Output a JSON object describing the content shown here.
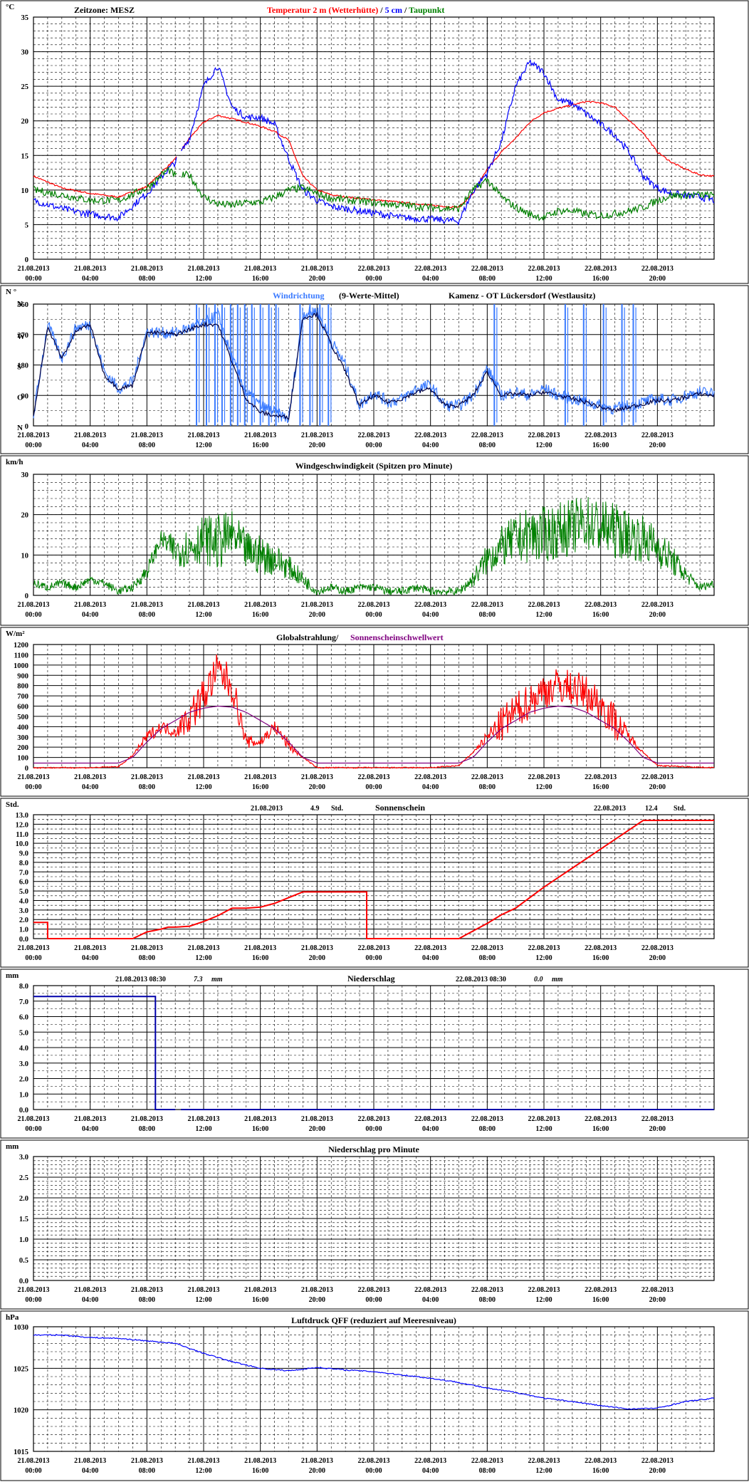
{
  "x_axis": {
    "dates": [
      "21.08.2013",
      "21.08.2013",
      "21.08.2013",
      "21.08.2013",
      "21.08.2013",
      "21.08.2013",
      "22.08.2013",
      "22.08.2013",
      "22.08.2013",
      "22.08.2013",
      "22.08.2013",
      "22.08.2013"
    ],
    "times": [
      "00:00",
      "04:00",
      "08:00",
      "12:00",
      "16:00",
      "20:00",
      "00:00",
      "04:00",
      "08:00",
      "12:00",
      "16:00",
      "20:00"
    ],
    "span_hours": 48
  },
  "chart_data": [
    {
      "id": "temperature",
      "type": "line",
      "unit": "°C",
      "header": {
        "zone": "Zeitzone: MESZ",
        "title_a": "Temperatur 2 m (Wetterhütte)",
        "sep1": " / ",
        "title_b": "5 cm",
        "sep2": " / ",
        "title_c": "Taupunkt"
      },
      "ylim": [
        0,
        35
      ],
      "ymajor": 5,
      "yminor": 1,
      "yticks": [
        0,
        5,
        10,
        15,
        20,
        25,
        30,
        35
      ],
      "x_hours": [
        0,
        2,
        4,
        6,
        8,
        9.5,
        10,
        11,
        12,
        13,
        14,
        15,
        16,
        17,
        18,
        19,
        20,
        21,
        22,
        24,
        26,
        28,
        30,
        31,
        32,
        33,
        34,
        35,
        36,
        37,
        38,
        39,
        40,
        41,
        42,
        43,
        44,
        45,
        46,
        47,
        48
      ],
      "series": [
        {
          "name": "Temperatur 2 m (Wetterhütte)",
          "color": "#ff0000",
          "values": [
            12,
            10.3,
            9.5,
            9,
            10.5,
            13.5,
            14.5,
            17.5,
            19.8,
            20.8,
            20.3,
            19.8,
            19.2,
            18.5,
            17.2,
            12,
            10,
            9.3,
            9,
            8.6,
            8.2,
            7.8,
            7.5,
            9.5,
            13,
            15.5,
            17.5,
            19.8,
            21.2,
            21.8,
            22.3,
            22.8,
            22.6,
            22,
            20,
            18.3,
            15.5,
            14,
            13,
            12.2,
            12
          ]
        },
        {
          "name": "5 cm",
          "color": "#0000ff",
          "values": [
            8.5,
            7.3,
            6.5,
            6,
            9.5,
            13,
            14,
            17.5,
            25,
            28,
            22,
            20.5,
            20.5,
            19.5,
            14.5,
            10,
            8.5,
            7.6,
            7.3,
            6.7,
            6,
            5.8,
            5.5,
            9.8,
            12.5,
            17,
            25,
            28.5,
            27,
            23,
            22.5,
            21,
            19.5,
            18,
            15.5,
            12,
            10.3,
            9.5,
            9.2,
            9,
            8.5
          ]
        },
        {
          "name": "Taupunkt",
          "color": "#008000",
          "values": [
            10,
            9.3,
            8.5,
            8.5,
            10.3,
            13,
            12,
            12.2,
            9,
            8,
            7.8,
            8.2,
            8.2,
            9,
            10,
            10.3,
            9.5,
            8.8,
            8.6,
            8.2,
            7.8,
            7.5,
            7.3,
            10,
            11.5,
            9,
            7.5,
            6.5,
            6,
            7,
            7,
            6.5,
            6.3,
            6.6,
            7,
            7.5,
            8.5,
            9.2,
            9.3,
            9.3,
            9.2
          ]
        }
      ],
      "gaps": [
        [
          10.1,
          10.4
        ]
      ]
    },
    {
      "id": "wind_direction",
      "type": "scatter",
      "unit": "N °",
      "header": {
        "title_a": "Windrichtung",
        "title_b": "(9-Werte-Mittel)",
        "station": "Kamenz - OT Lückersdorf (Westlausitz)"
      },
      "ylim": [
        0,
        360
      ],
      "yticks": [
        0,
        90,
        180,
        270,
        360
      ],
      "compass_labels": [
        "N",
        "O",
        "S",
        "W",
        "N"
      ],
      "compass_at": [
        0,
        90,
        180,
        270,
        360
      ],
      "x_hours": [
        0,
        1,
        2,
        3,
        4,
        5,
        6,
        7,
        8,
        9,
        10,
        11,
        12,
        13,
        14,
        15,
        16,
        17,
        18,
        19,
        20,
        21,
        22,
        23,
        24,
        25,
        26,
        27,
        28,
        29,
        30,
        31,
        32,
        33,
        34,
        35,
        36,
        37,
        38,
        39,
        40,
        41,
        42,
        43,
        44,
        45,
        46,
        47,
        48
      ],
      "series": [
        {
          "name": "Windrichtung",
          "color": "#3b7bff",
          "values": [
            30,
            300,
            200,
            290,
            300,
            160,
            110,
            130,
            280,
            275,
            275,
            290,
            300,
            330,
            200,
            100,
            60,
            40,
            20,
            330,
            340,
            250,
            180,
            60,
            100,
            70,
            80,
            110,
            120,
            60,
            60,
            90,
            170,
            90,
            100,
            90,
            110,
            90,
            80,
            70,
            60,
            50,
            60,
            70,
            80,
            75,
            90,
            100,
            95
          ]
        },
        {
          "name": "9-Werte-Mittel",
          "color": "#000040",
          "values": [
            30,
            290,
            200,
            280,
            300,
            150,
            110,
            120,
            275,
            275,
            270,
            285,
            300,
            300,
            190,
            80,
            40,
            30,
            25,
            320,
            330,
            240,
            160,
            60,
            90,
            70,
            80,
            100,
            110,
            60,
            60,
            90,
            160,
            90,
            95,
            90,
            100,
            90,
            80,
            70,
            55,
            45,
            55,
            65,
            75,
            75,
            85,
            95,
            90
          ]
        }
      ],
      "spikes_hours": [
        11.5,
        12.2,
        12.8,
        13.3,
        13.9,
        14.4,
        14.9,
        15.4,
        16.0,
        16.6,
        17.1,
        18.8,
        19.5,
        20.2,
        20.8,
        32.5,
        37.5,
        38.8,
        40.2,
        41.5,
        42.3
      ]
    },
    {
      "id": "wind_speed",
      "type": "line",
      "unit": "km/h",
      "header": {
        "title": "Windgeschwindigkeit (Spitzen pro Minute)"
      },
      "ylim": [
        0,
        30
      ],
      "yticks": [
        0,
        10,
        20,
        30
      ],
      "x_hours": [
        0,
        1,
        2,
        3,
        4,
        5,
        6,
        7,
        8,
        9,
        10,
        11,
        12,
        13,
        14,
        15,
        16,
        17,
        18,
        19,
        20,
        21,
        22,
        23,
        24,
        25,
        26,
        27,
        28,
        29,
        30,
        31,
        32,
        33,
        34,
        35,
        36,
        37,
        38,
        39,
        40,
        41,
        42,
        43,
        44,
        45,
        46,
        47,
        48
      ],
      "series": [
        {
          "name": "Windgeschwindigkeit",
          "color": "#008000",
          "values": [
            3,
            2,
            3,
            2,
            4,
            3,
            1,
            2,
            6,
            14,
            11,
            12,
            14,
            13,
            15,
            11,
            10,
            9,
            7,
            4,
            1,
            2,
            1,
            2,
            2,
            1,
            1,
            2,
            1,
            1,
            1,
            4,
            9,
            12,
            14,
            15,
            15,
            16,
            17,
            18,
            17,
            16,
            15,
            14,
            12,
            9,
            5,
            2,
            3
          ]
        }
      ],
      "amplitude": [
        1,
        1,
        1,
        1,
        1,
        1,
        1,
        1,
        2,
        2,
        4,
        5,
        6,
        7,
        6,
        5,
        5,
        4,
        3,
        2,
        1,
        1,
        1,
        1,
        1,
        1,
        1,
        1,
        1,
        1,
        1,
        2,
        4,
        5,
        6,
        7,
        7,
        7,
        7,
        7,
        7,
        7,
        6,
        6,
        5,
        4,
        2,
        1,
        1
      ]
    },
    {
      "id": "radiation",
      "type": "line",
      "unit": "W/m²",
      "header": {
        "title_a": "Globalstrahlung/",
        "title_b": "Sonnenscheinschwellwert"
      },
      "ylim": [
        0,
        1200
      ],
      "yticks": [
        0,
        100,
        200,
        300,
        400,
        500,
        600,
        700,
        800,
        900,
        1000,
        1100,
        1200
      ],
      "x_hours": [
        0,
        4,
        6,
        7,
        8,
        9,
        10,
        11,
        12,
        13,
        14,
        15,
        16,
        17,
        18,
        19,
        20,
        24,
        28,
        30,
        31,
        32,
        33,
        34,
        35,
        36,
        37,
        38,
        39,
        40,
        41,
        42,
        43,
        44,
        48
      ],
      "series": [
        {
          "name": "Globalstrahlung",
          "color": "#ff0000",
          "values": [
            0,
            0,
            10,
            120,
            300,
            400,
            350,
            500,
            700,
            950,
            800,
            250,
            250,
            400,
            220,
            100,
            0,
            0,
            0,
            20,
            150,
            300,
            420,
            550,
            650,
            750,
            800,
            780,
            720,
            620,
            450,
            300,
            150,
            20,
            0
          ]
        },
        {
          "name": "Sonnenscheinschwellwert",
          "color": "#800080",
          "values": [
            45,
            45,
            45,
            100,
            250,
            380,
            460,
            540,
            580,
            600,
            590,
            540,
            460,
            380,
            250,
            100,
            45,
            45,
            45,
            45,
            100,
            250,
            380,
            460,
            540,
            580,
            600,
            590,
            540,
            460,
            380,
            250,
            100,
            45,
            45
          ]
        }
      ]
    },
    {
      "id": "sunshine",
      "type": "line",
      "unit": "Std.",
      "header": {
        "day1_date": "21.08.2013",
        "day1_value": "4.9",
        "day1_unit": "Std.",
        "title": "Sonnenschein",
        "day2_date": "22.08.2013",
        "day2_value": "12.4",
        "day2_unit": "Std."
      },
      "ylim": [
        0,
        13
      ],
      "yticks": [
        0,
        1,
        2,
        3,
        4,
        5,
        6,
        7,
        8,
        9,
        10,
        11,
        12,
        13
      ],
      "x_hours": [
        0,
        1,
        1,
        7,
        8,
        9,
        9.5,
        10,
        11,
        12,
        13,
        14,
        15,
        16,
        17,
        18,
        19,
        20,
        23.5,
        23.5,
        30,
        31,
        32,
        33,
        34,
        35,
        36,
        37,
        38,
        39,
        40,
        41,
        42,
        43,
        44,
        48
      ],
      "series": [
        {
          "name": "Sonnenschein",
          "color": "#ff0000",
          "values": [
            1.7,
            1.7,
            0,
            0,
            0.7,
            1.0,
            1.2,
            1.2,
            1.3,
            1.8,
            2.4,
            3.2,
            3.2,
            3.3,
            3.7,
            4.3,
            4.9,
            4.9,
            4.9,
            0,
            0,
            0.8,
            1.6,
            2.5,
            3.2,
            4.3,
            5.4,
            6.4,
            7.4,
            8.4,
            9.4,
            10.4,
            11.4,
            12.4,
            12.4,
            12.4
          ]
        }
      ]
    },
    {
      "id": "precipitation",
      "type": "line",
      "unit": "mm",
      "header": {
        "day1_stamp": "21.08.2013 08:30",
        "day1_value": "7.3",
        "day1_unit": "mm",
        "title": "Niederschlag",
        "day2_stamp": "22.08.2013 08:30",
        "day2_value": "0.0",
        "day2_unit": "mm"
      },
      "ylim": [
        0,
        8
      ],
      "yticks": [
        0,
        1,
        2,
        3,
        4,
        5,
        6,
        7,
        8
      ],
      "x_hours": [
        0,
        8.6,
        8.6,
        10.0,
        10.4,
        48
      ],
      "series": [
        {
          "name": "Niederschlag",
          "color": "#0000aa",
          "values": [
            7.3,
            7.3,
            0,
            0,
            0,
            0
          ]
        }
      ]
    },
    {
      "id": "precip_minute",
      "type": "line",
      "unit": "mm",
      "header": {
        "title": "Niederschlag pro Minute"
      },
      "ylim": [
        0,
        3
      ],
      "yticks": [
        0.0,
        0.5,
        1.0,
        1.5,
        2.0,
        2.5,
        3.0
      ],
      "x_hours": [
        0,
        48
      ],
      "series": []
    },
    {
      "id": "pressure",
      "type": "line",
      "unit": "hPa",
      "header": {
        "title": "Luftdruck QFF (reduziert auf Meeresniveau)"
      },
      "ylim": [
        1015,
        1030
      ],
      "yticks": [
        1015,
        1020,
        1025,
        1030
      ],
      "x_hours": [
        0,
        2,
        4,
        6,
        8,
        10,
        12,
        14,
        16,
        18,
        20,
        22,
        24,
        26,
        28,
        30,
        32,
        34,
        36,
        38,
        40,
        42,
        44,
        46,
        48
      ],
      "series": [
        {
          "name": "Luftdruck QFF",
          "color": "#0000ff",
          "values": [
            1029,
            1029,
            1028.7,
            1028.6,
            1028.3,
            1028,
            1026.8,
            1025.8,
            1025,
            1024.7,
            1025.1,
            1024.8,
            1024.6,
            1024.2,
            1023.8,
            1023.3,
            1022.6,
            1022.1,
            1021.4,
            1021.0,
            1020.5,
            1020.1,
            1020.2,
            1021.0,
            1021.4
          ]
        }
      ]
    }
  ]
}
